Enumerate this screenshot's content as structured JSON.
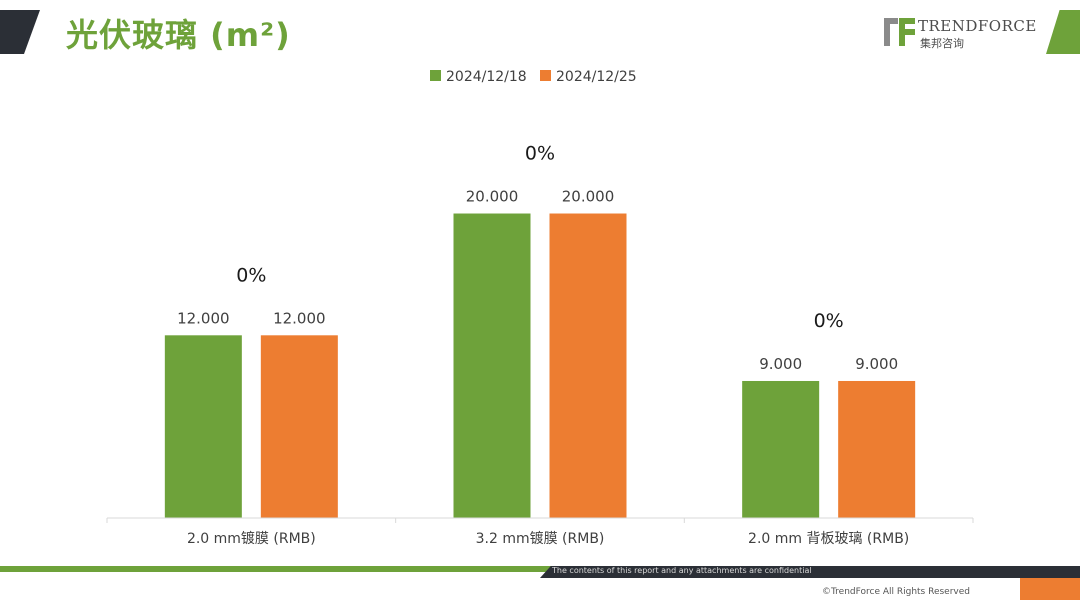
{
  "header": {
    "title": "光伏玻璃 (m²)",
    "brand_name": "TRENDFORCE",
    "brand_sub": "集邦咨询"
  },
  "footer": {
    "confidential": "The contents of this report and any attachments are confidential",
    "copyright": "©TrendForce All Rights Reserved"
  },
  "colors": {
    "series1": "#6ea23a",
    "series2": "#ed7d31",
    "title": "#6ea23a"
  },
  "chart_data": {
    "type": "bar",
    "categories": [
      "2.0 mm镀膜 (RMB)",
      "3.2 mm镀膜 (RMB)",
      "2.0 mm 背板玻璃 (RMB)"
    ],
    "series": [
      {
        "name": "2024/12/18",
        "values": [
          12.0,
          20.0,
          9.0
        ]
      },
      {
        "name": "2024/12/25",
        "values": [
          12.0,
          20.0,
          9.0
        ]
      }
    ],
    "value_labels": [
      [
        "12.000",
        "20.000",
        "9.000"
      ],
      [
        "12.000",
        "20.000",
        "9.000"
      ]
    ],
    "change_labels": [
      "0%",
      "0%",
      "0%"
    ],
    "ylim": [
      0,
      24.5
    ],
    "legend_position": "top-center",
    "grid": false
  }
}
